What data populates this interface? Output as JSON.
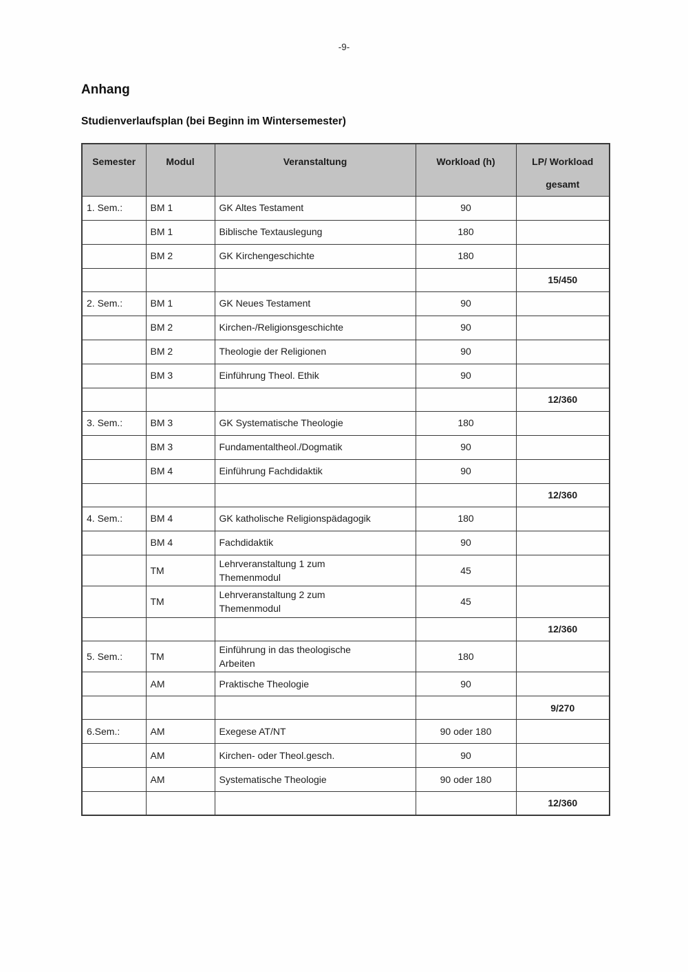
{
  "page": {
    "number": "-9-"
  },
  "headings": {
    "title": "Anhang",
    "subtitle": "Studienverlaufsplan (bei Beginn im Wintersemester)"
  },
  "table": {
    "headers": [
      "Semester",
      "Modul",
      "Veranstaltung",
      "Workload (h)",
      "LP/ Workload\ngesamt"
    ],
    "rows": [
      {
        "semester": "1. Sem.:",
        "modul": "BM 1",
        "veranstaltung": "GK Altes Testament",
        "workload": "90",
        "lp": ""
      },
      {
        "semester": "",
        "modul": "BM 1",
        "veranstaltung": "Biblische Textauslegung",
        "workload": "180",
        "lp": ""
      },
      {
        "semester": "",
        "modul": "BM 2",
        "veranstaltung": "GK Kirchengeschichte",
        "workload": "180",
        "lp": ""
      },
      {
        "type": "total",
        "semester": "",
        "modul": "",
        "veranstaltung": "",
        "workload": "",
        "lp": "15/450"
      },
      {
        "semester": "2. Sem.:",
        "modul": "BM 1",
        "veranstaltung": "GK Neues Testament",
        "workload": "90",
        "lp": ""
      },
      {
        "semester": "",
        "modul": "BM 2",
        "veranstaltung": "Kirchen-/Religionsgeschichte",
        "workload": "90",
        "lp": ""
      },
      {
        "semester": "",
        "modul": "BM 2",
        "veranstaltung": "Theologie der Religionen",
        "workload": "90",
        "lp": ""
      },
      {
        "semester": "",
        "modul": "BM 3",
        "veranstaltung": "Einführung Theol. Ethik",
        "workload": "90",
        "lp": ""
      },
      {
        "type": "total",
        "semester": "",
        "modul": "",
        "veranstaltung": "",
        "workload": "",
        "lp": "12/360"
      },
      {
        "semester": "3. Sem.:",
        "modul": "BM 3",
        "veranstaltung": "GK Systematische Theologie",
        "workload": "180",
        "lp": ""
      },
      {
        "semester": "",
        "modul": "BM 3",
        "veranstaltung": "Fundamentaltheol./Dogmatik",
        "workload": "90",
        "lp": ""
      },
      {
        "semester": "",
        "modul": "BM 4",
        "veranstaltung": "Einführung Fachdidaktik",
        "workload": "90",
        "lp": ""
      },
      {
        "type": "total",
        "semester": "",
        "modul": "",
        "veranstaltung": "",
        "workload": "",
        "lp": "12/360"
      },
      {
        "semester": "4. Sem.:",
        "modul": "BM 4",
        "veranstaltung": "GK katholische Religionspädagogik",
        "workload": "180",
        "lp": "",
        "ver_top": true
      },
      {
        "semester": "",
        "modul": "BM 4",
        "veranstaltung": "Fachdidaktik",
        "workload": "90",
        "lp": ""
      },
      {
        "semester": "",
        "modul": "TM",
        "veranstaltung": "Lehrveranstaltung 1 zum\nThemenmodul",
        "workload": "45",
        "lp": ""
      },
      {
        "semester": "",
        "modul": "TM",
        "veranstaltung": "Lehrveranstaltung 2 zum\nThemenmodul",
        "workload": "45",
        "lp": ""
      },
      {
        "type": "total",
        "semester": "",
        "modul": "",
        "veranstaltung": "",
        "workload": "",
        "lp": "12/360"
      },
      {
        "semester": "5. Sem.:",
        "modul": "TM",
        "veranstaltung": "Einführung in das theologische\nArbeiten",
        "workload": "180",
        "lp": ""
      },
      {
        "semester": "",
        "modul": "AM",
        "veranstaltung": "Praktische Theologie",
        "workload": "90",
        "lp": ""
      },
      {
        "type": "total",
        "semester": "",
        "modul": "",
        "veranstaltung": "",
        "workload": "",
        "lp": "9/270"
      },
      {
        "semester": "6.Sem.:",
        "modul": "AM",
        "veranstaltung": "Exegese AT/NT",
        "workload": "90 oder 180",
        "lp": ""
      },
      {
        "semester": "",
        "modul": "AM",
        "veranstaltung": "Kirchen- oder Theol.gesch.",
        "workload": "90",
        "lp": ""
      },
      {
        "semester": "",
        "modul": "AM",
        "veranstaltung": "Systematische Theologie",
        "workload": "90 oder 180",
        "lp": ""
      },
      {
        "type": "total",
        "semester": "",
        "modul": "",
        "veranstaltung": "",
        "workload": "",
        "lp": "12/360"
      }
    ]
  }
}
